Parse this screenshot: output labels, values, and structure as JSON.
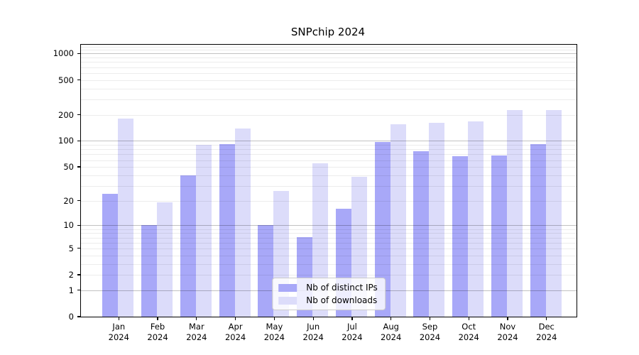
{
  "chart_data": {
    "type": "bar",
    "title": "SNPchip 2024",
    "categories": [
      "Jan",
      "Feb",
      "Mar",
      "Apr",
      "May",
      "Jun",
      "Jul",
      "Aug",
      "Sep",
      "Oct",
      "Nov",
      "Dec"
    ],
    "category_year": "2024",
    "series": [
      {
        "name": "Nb of distinct IPs",
        "color": "#a8a8f8",
        "values": [
          24,
          10,
          40,
          92,
          10,
          7,
          16,
          98,
          76,
          66,
          68,
          92
        ]
      },
      {
        "name": "Nb of downloads",
        "color": "#dcdcfa",
        "values": [
          180,
          19,
          90,
          140,
          26,
          55,
          38,
          155,
          160,
          166,
          225,
          225
        ]
      }
    ],
    "yscale": "log1p",
    "ylim": [
      0,
      1260
    ],
    "yticks": [
      0,
      1,
      2,
      5,
      10,
      20,
      50,
      100,
      200,
      500,
      1000
    ],
    "grid": {
      "major_at": [
        1,
        10,
        100,
        1000
      ],
      "minor_at": [
        2,
        3,
        4,
        5,
        6,
        7,
        8,
        9,
        20,
        30,
        40,
        50,
        60,
        70,
        80,
        90,
        200,
        300,
        400,
        500,
        600,
        700,
        800,
        900,
        1100,
        1200
      ]
    },
    "legend_position": "lower center",
    "xlabel": "",
    "ylabel": ""
  }
}
